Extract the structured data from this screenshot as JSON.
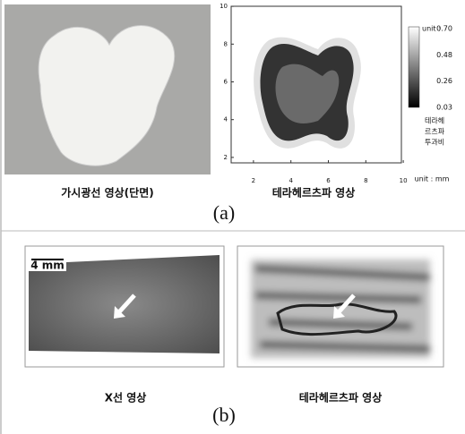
{
  "panel_a": {
    "left_caption": "가시광선 영상(단면)",
    "right_caption": "테라헤르츠파 영상",
    "label": "(a)",
    "x_ticks": [
      2,
      4,
      6,
      8,
      10
    ],
    "y_ticks": [
      2,
      4,
      6,
      8,
      10
    ],
    "axis_unit": "unit : mm",
    "colorbar": {
      "unit": "unit :",
      "ticks": [
        "0.70",
        "0.48",
        "0.26",
        "0.03"
      ],
      "title_lines": [
        "테라헤",
        "르츠파",
        "투과비"
      ]
    }
  },
  "panel_b": {
    "scale_bar": "4 mm",
    "left_caption": "X선 영상",
    "right_caption": "테라헤르츠파 영상",
    "label": "(b)"
  }
}
